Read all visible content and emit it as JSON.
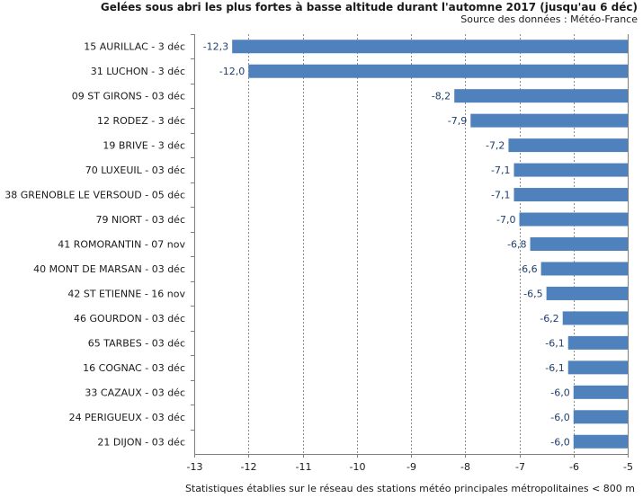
{
  "title": "Gelées sous abri les plus fortes à basse altitude durant l'automne 2017 (jusqu'au 6 déc)",
  "source": "Source des données : Météo-France",
  "footnote": "Statistiques établies sur le réseau des stations météo principales métropolitaines < 800 m",
  "colors": {
    "bar": "#4f81bd",
    "label": "#1f3f6e",
    "grid": "#8c8c8c",
    "axis": "#7f7f7f",
    "text": "#1a1a1a"
  },
  "chart_data": {
    "type": "bar",
    "orientation": "horizontal",
    "title": "Gelées sous abri les plus fortes à basse altitude durant l'automne 2017 (jusqu'au 6 déc)",
    "xlabel": "",
    "ylabel": "",
    "xlim": [
      -13,
      -5
    ],
    "xticks": [
      -13,
      -12,
      -11,
      -10,
      -9,
      -8,
      -7,
      -6,
      -5
    ],
    "grid": true,
    "categories": [
      "15 AURILLAC - 3 déc",
      "31 LUCHON - 3 déc",
      "09 ST GIRONS - 03 déc",
      "12 RODEZ - 3 déc",
      "19 BRIVE - 3 déc",
      "70 LUXEUIL - 03 déc",
      "38 GRENOBLE LE VERSOUD - 05 déc",
      "79 NIORT - 03 déc",
      "41 ROMORANTIN - 07 nov",
      "40 MONT DE MARSAN - 03 déc",
      "42 ST ETIENNE - 16 nov",
      "46 GOURDON - 03 déc",
      "65 TARBES - 03 déc",
      "16 COGNAC - 03 déc",
      "33 CAZAUX - 03 déc",
      "24 PERIGUEUX - 03 déc",
      "21 DIJON - 03 déc"
    ],
    "values": [
      -12.3,
      -12.0,
      -8.2,
      -7.9,
      -7.2,
      -7.1,
      -7.1,
      -7.0,
      -6.8,
      -6.6,
      -6.5,
      -6.2,
      -6.1,
      -6.1,
      -6.0,
      -6.0,
      -6.0
    ],
    "value_labels": [
      "-12,3",
      "-12,0",
      "-8,2",
      "-7,9",
      "-7,2",
      "-7,1",
      "-7,1",
      "-7,0",
      "-6,8",
      "-6,6",
      "-6,5",
      "-6,2",
      "-6,1",
      "-6,1",
      "-6,0",
      "-6,0",
      "-6,0"
    ]
  }
}
